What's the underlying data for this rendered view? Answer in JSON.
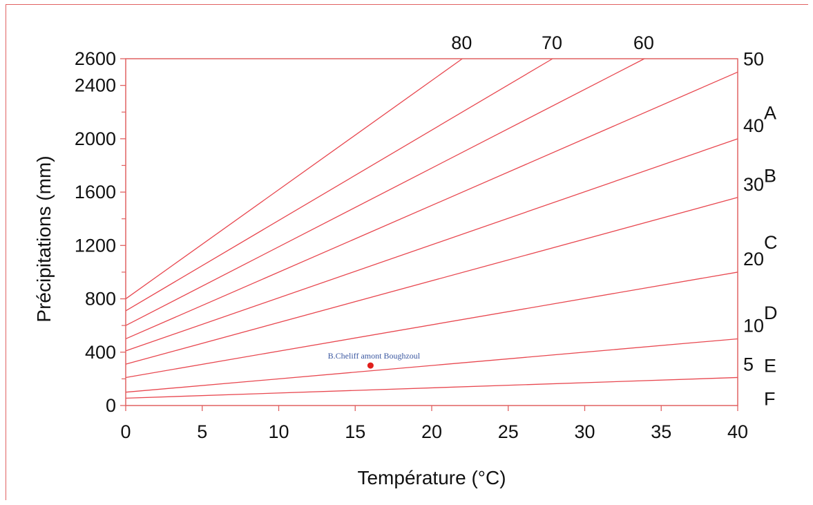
{
  "chart_data": {
    "type": "line",
    "title": "",
    "xlabel": "Température (°C)",
    "ylabel": "Précipitations (mm)",
    "xlim": [
      0,
      40
    ],
    "ylim": [
      0,
      2600
    ],
    "x_ticks": [
      "0",
      "5",
      "10",
      "15",
      "20",
      "25",
      "30",
      "35",
      "40"
    ],
    "y_ticks": [
      "0",
      "400",
      "800",
      "1200",
      "1600",
      "2000",
      "2400",
      "2600"
    ],
    "grid": false,
    "colors": {
      "lines": "#e8474f",
      "axis": "#e06060",
      "point": "#e0201c",
      "point_label": "#3a57a0"
    },
    "index_lines": [
      {
        "label": "80",
        "x": [
          0,
          22
        ],
        "y": [
          800,
          2600
        ]
      },
      {
        "label": "70",
        "x": [
          0,
          27.9
        ],
        "y": [
          710,
          2600
        ]
      },
      {
        "label": "60",
        "x": [
          0,
          33.9
        ],
        "y": [
          600,
          2600
        ]
      },
      {
        "label": "50",
        "x": [
          0,
          40
        ],
        "y": [
          500,
          2500
        ]
      },
      {
        "label": "40",
        "x": [
          0,
          40
        ],
        "y": [
          410,
          2000
        ]
      },
      {
        "label": "30",
        "x": [
          0,
          40
        ],
        "y": [
          310,
          1560
        ]
      },
      {
        "label": "20",
        "x": [
          0,
          40
        ],
        "y": [
          210,
          1000
        ]
      },
      {
        "label": "10",
        "x": [
          0,
          40
        ],
        "y": [
          100,
          500
        ]
      },
      {
        "label": "5",
        "x": [
          0,
          40
        ],
        "y": [
          55,
          210
        ]
      }
    ],
    "zones": [
      "A",
      "B",
      "C",
      "D",
      "E",
      "F"
    ],
    "points": [
      {
        "label": "B.Cheliff amont Boughzoul",
        "x": 16,
        "y": 300
      }
    ]
  }
}
